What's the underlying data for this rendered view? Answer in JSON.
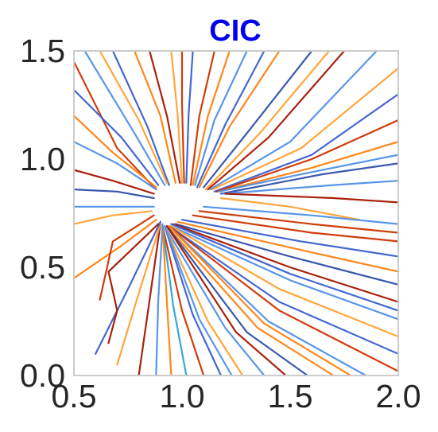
{
  "chart_data": {
    "type": "line",
    "title": "CIC",
    "title_color": "#0000ee",
    "xlim": [
      0.5,
      2.0
    ],
    "ylim": [
      0.0,
      1.5
    ],
    "xticks": [
      0.5,
      1.0,
      1.5,
      2.0
    ],
    "yticks": [
      0.0,
      0.5,
      1.0,
      1.5
    ],
    "xtick_labels": [
      "0.5",
      "1.0",
      "1.5",
      "2.0"
    ],
    "ytick_labels": [
      "0.0",
      "0.5",
      "1.0",
      "1.5"
    ],
    "grid": false,
    "legend": "none",
    "palette": [
      "#3a5fcd",
      "#4f8fe8",
      "#cc3300",
      "#ff7f0e",
      "#ffa030",
      "#a31500",
      "#2f4faa",
      "#29a3d6"
    ],
    "attractor": [
      0.93,
      0.77
    ],
    "series": [
      {
        "color": "#cc3300",
        "points": [
          [
            0.5,
            1.45
          ],
          [
            0.7,
            1.05
          ],
          [
            0.88,
            0.86
          ]
        ]
      },
      {
        "color": "#4f8fe8",
        "points": [
          [
            0.55,
            1.5
          ],
          [
            0.78,
            1.12
          ],
          [
            0.92,
            0.88
          ]
        ]
      },
      {
        "color": "#3a5fcd",
        "points": [
          [
            0.68,
            1.5
          ],
          [
            0.84,
            1.15
          ],
          [
            0.94,
            0.88
          ]
        ]
      },
      {
        "color": "#ff7f0e",
        "points": [
          [
            0.78,
            1.5
          ],
          [
            0.9,
            1.2
          ],
          [
            0.97,
            0.89
          ]
        ]
      },
      {
        "color": "#a31500",
        "points": [
          [
            0.85,
            1.5
          ],
          [
            0.93,
            1.2
          ],
          [
            0.99,
            0.89
          ]
        ]
      },
      {
        "color": "#ffa030",
        "points": [
          [
            0.95,
            1.5
          ],
          [
            0.98,
            1.2
          ],
          [
            1.0,
            0.89
          ]
        ]
      },
      {
        "color": "#3a5fcd",
        "points": [
          [
            1.05,
            1.5
          ],
          [
            1.03,
            1.2
          ],
          [
            1.02,
            0.89
          ]
        ]
      },
      {
        "color": "#cc3300",
        "points": [
          [
            1.15,
            1.5
          ],
          [
            1.08,
            1.2
          ],
          [
            1.04,
            0.88
          ]
        ]
      },
      {
        "color": "#4f8fe8",
        "points": [
          [
            1.3,
            1.5
          ],
          [
            1.15,
            1.18
          ],
          [
            1.06,
            0.88
          ]
        ]
      },
      {
        "color": "#ff7f0e",
        "points": [
          [
            1.45,
            1.5
          ],
          [
            1.22,
            1.15
          ],
          [
            1.08,
            0.87
          ]
        ]
      },
      {
        "color": "#2f4faa",
        "points": [
          [
            1.6,
            1.5
          ],
          [
            1.3,
            1.12
          ],
          [
            1.1,
            0.87
          ]
        ]
      },
      {
        "color": "#a31500",
        "points": [
          [
            1.75,
            1.5
          ],
          [
            1.4,
            1.1
          ],
          [
            1.12,
            0.86
          ]
        ]
      },
      {
        "color": "#4f8fe8",
        "points": [
          [
            1.9,
            1.5
          ],
          [
            1.5,
            1.08
          ],
          [
            1.13,
            0.86
          ]
        ]
      },
      {
        "color": "#ffa030",
        "points": [
          [
            2.0,
            1.42
          ],
          [
            1.55,
            1.05
          ],
          [
            1.14,
            0.86
          ]
        ]
      },
      {
        "color": "#3a5fcd",
        "points": [
          [
            2.0,
            1.3
          ],
          [
            1.6,
            1.02
          ],
          [
            1.15,
            0.85
          ]
        ]
      },
      {
        "color": "#cc3300",
        "points": [
          [
            2.0,
            1.18
          ],
          [
            1.6,
            1.0
          ],
          [
            1.16,
            0.85
          ]
        ]
      },
      {
        "color": "#ff7f0e",
        "points": [
          [
            2.0,
            1.08
          ],
          [
            1.6,
            0.96
          ],
          [
            1.17,
            0.85
          ]
        ]
      },
      {
        "color": "#2f4faa",
        "points": [
          [
            2.0,
            0.98
          ],
          [
            1.65,
            0.93
          ],
          [
            1.18,
            0.84
          ]
        ]
      },
      {
        "color": "#4f8fe8",
        "points": [
          [
            2.0,
            0.9
          ],
          [
            1.7,
            0.88
          ],
          [
            1.19,
            0.84
          ]
        ]
      },
      {
        "color": "#a31500",
        "points": [
          [
            2.0,
            0.8
          ],
          [
            1.7,
            0.82
          ],
          [
            1.2,
            0.84
          ]
        ]
      },
      {
        "color": "#ffa030",
        "points": [
          [
            1.82,
            0.72
          ],
          [
            1.5,
            0.78
          ],
          [
            1.18,
            0.82
          ]
        ]
      },
      {
        "color": "#4f8fe8",
        "points": [
          [
            2.0,
            0.7
          ],
          [
            1.6,
            0.74
          ],
          [
            1.1,
            0.78
          ]
        ]
      },
      {
        "color": "#cc3300",
        "points": [
          [
            2.0,
            0.62
          ],
          [
            1.6,
            0.66
          ],
          [
            1.05,
            0.74
          ]
        ]
      },
      {
        "color": "#3a5fcd",
        "points": [
          [
            2.0,
            0.55
          ],
          [
            1.55,
            0.62
          ],
          [
            1.0,
            0.72
          ]
        ]
      },
      {
        "color": "#ff7f0e",
        "points": [
          [
            2.0,
            0.48
          ],
          [
            1.55,
            0.58
          ],
          [
            0.98,
            0.71
          ]
        ]
      },
      {
        "color": "#2f4faa",
        "points": [
          [
            2.0,
            0.42
          ],
          [
            1.5,
            0.55
          ],
          [
            0.97,
            0.7
          ]
        ]
      },
      {
        "color": "#a31500",
        "points": [
          [
            2.0,
            0.34
          ],
          [
            1.5,
            0.5
          ],
          [
            0.96,
            0.7
          ]
        ]
      },
      {
        "color": "#4f8fe8",
        "points": [
          [
            2.0,
            0.26
          ],
          [
            1.5,
            0.44
          ],
          [
            0.95,
            0.69
          ]
        ]
      },
      {
        "color": "#ffa030",
        "points": [
          [
            2.0,
            0.18
          ],
          [
            1.45,
            0.4
          ],
          [
            0.95,
            0.69
          ]
        ]
      },
      {
        "color": "#3a5fcd",
        "points": [
          [
            2.0,
            0.1
          ],
          [
            1.45,
            0.34
          ],
          [
            0.94,
            0.69
          ]
        ]
      },
      {
        "color": "#cc3300",
        "points": [
          [
            2.0,
            0.02
          ],
          [
            1.45,
            0.3
          ],
          [
            0.94,
            0.69
          ]
        ]
      },
      {
        "color": "#4f8fe8",
        "points": [
          [
            1.85,
            0.0
          ],
          [
            1.4,
            0.25
          ],
          [
            0.94,
            0.69
          ]
        ]
      },
      {
        "color": "#ff7f0e",
        "points": [
          [
            1.7,
            0.0
          ],
          [
            1.35,
            0.22
          ],
          [
            0.93,
            0.69
          ]
        ]
      },
      {
        "color": "#2f4faa",
        "points": [
          [
            1.58,
            0.0
          ],
          [
            1.3,
            0.2
          ],
          [
            0.93,
            0.69
          ]
        ]
      },
      {
        "color": "#a31500",
        "points": [
          [
            1.48,
            0.0
          ],
          [
            1.25,
            0.2
          ],
          [
            0.93,
            0.69
          ]
        ]
      },
      {
        "color": "#4f8fe8",
        "points": [
          [
            1.38,
            0.0
          ],
          [
            1.2,
            0.22
          ],
          [
            0.92,
            0.69
          ]
        ]
      },
      {
        "color": "#ffa030",
        "points": [
          [
            1.28,
            0.0
          ],
          [
            1.12,
            0.25
          ],
          [
            0.92,
            0.69
          ]
        ]
      },
      {
        "color": "#3a5fcd",
        "points": [
          [
            1.18,
            0.0
          ],
          [
            1.05,
            0.28
          ],
          [
            0.92,
            0.69
          ]
        ]
      },
      {
        "color": "#cc3300",
        "points": [
          [
            1.1,
            0.0
          ],
          [
            1.0,
            0.3
          ],
          [
            0.91,
            0.69
          ]
        ]
      },
      {
        "color": "#29a3d6",
        "points": [
          [
            1.02,
            0.0
          ],
          [
            0.96,
            0.32
          ],
          [
            0.91,
            0.69
          ]
        ]
      },
      {
        "color": "#ff7f0e",
        "points": [
          [
            0.95,
            0.0
          ],
          [
            0.93,
            0.34
          ],
          [
            0.91,
            0.69
          ]
        ]
      },
      {
        "color": "#4f8fe8",
        "points": [
          [
            0.88,
            0.0
          ],
          [
            0.89,
            0.35
          ],
          [
            0.91,
            0.7
          ]
        ]
      },
      {
        "color": "#a31500",
        "points": [
          [
            0.8,
            0.0
          ],
          [
            0.85,
            0.35
          ],
          [
            0.9,
            0.7
          ]
        ]
      },
      {
        "color": "#ffa030",
        "points": [
          [
            0.7,
            0.05
          ],
          [
            0.8,
            0.38
          ],
          [
            0.9,
            0.7
          ]
        ]
      },
      {
        "color": "#3a5fcd",
        "points": [
          [
            0.6,
            0.1
          ],
          [
            0.76,
            0.42
          ],
          [
            0.9,
            0.71
          ]
        ]
      },
      {
        "color": "#ff7f0e",
        "points": [
          [
            0.5,
            0.45
          ],
          [
            0.72,
            0.6
          ],
          [
            0.88,
            0.72
          ]
        ]
      },
      {
        "color": "#cc3300",
        "points": [
          [
            0.62,
            0.35
          ],
          [
            0.68,
            0.62
          ],
          [
            0.87,
            0.74
          ]
        ]
      },
      {
        "color": "#4f8fe8",
        "points": [
          [
            0.5,
            0.78
          ],
          [
            0.7,
            0.78
          ],
          [
            0.87,
            0.78
          ]
        ]
      },
      {
        "color": "#ffa030",
        "points": [
          [
            0.5,
            0.7
          ],
          [
            0.68,
            0.74
          ],
          [
            0.86,
            0.76
          ]
        ]
      },
      {
        "color": "#2f4faa",
        "points": [
          [
            0.5,
            0.86
          ],
          [
            0.7,
            0.85
          ],
          [
            0.87,
            0.82
          ]
        ]
      },
      {
        "color": "#a31500",
        "points": [
          [
            0.5,
            0.95
          ],
          [
            0.68,
            0.9
          ],
          [
            0.87,
            0.84
          ]
        ]
      },
      {
        "color": "#4f8fe8",
        "points": [
          [
            0.5,
            1.08
          ],
          [
            0.7,
            0.98
          ],
          [
            0.88,
            0.86
          ]
        ]
      },
      {
        "color": "#ff7f0e",
        "points": [
          [
            0.5,
            1.2
          ],
          [
            0.68,
            1.03
          ],
          [
            0.88,
            0.87
          ]
        ]
      },
      {
        "color": "#3a5fcd",
        "points": [
          [
            0.5,
            1.32
          ],
          [
            0.72,
            1.1
          ],
          [
            0.89,
            0.88
          ]
        ]
      },
      {
        "color": "#ffa030",
        "points": [
          [
            0.62,
            1.5
          ],
          [
            0.8,
            1.18
          ],
          [
            0.93,
            0.89
          ]
        ]
      },
      {
        "color": "#cc3300",
        "points": [
          [
            1.0,
            1.5
          ],
          [
            1.0,
            1.25
          ],
          [
            1.01,
            0.89
          ]
        ]
      },
      {
        "color": "#ff7f0e",
        "points": [
          [
            1.22,
            1.5
          ],
          [
            1.12,
            1.2
          ],
          [
            1.05,
            0.88
          ]
        ]
      },
      {
        "color": "#3a5fcd",
        "points": [
          [
            1.38,
            1.5
          ],
          [
            1.2,
            1.16
          ],
          [
            1.07,
            0.87
          ]
        ]
      },
      {
        "color": "#ffa030",
        "points": [
          [
            1.68,
            1.5
          ],
          [
            1.36,
            1.12
          ],
          [
            1.11,
            0.86
          ]
        ]
      },
      {
        "color": "#4f8fe8",
        "points": [
          [
            2.0,
            1.02
          ],
          [
            1.6,
            0.94
          ],
          [
            1.17,
            0.85
          ]
        ]
      },
      {
        "color": "#cc3300",
        "points": [
          [
            2.0,
            0.66
          ],
          [
            1.6,
            0.7
          ],
          [
            1.08,
            0.76
          ]
        ]
      },
      {
        "color": "#3a5fcd",
        "points": [
          [
            2.0,
            0.3
          ],
          [
            1.5,
            0.47
          ],
          [
            0.95,
            0.7
          ]
        ]
      },
      {
        "color": "#ff7f0e",
        "points": [
          [
            1.78,
            0.0
          ],
          [
            1.38,
            0.24
          ],
          [
            0.94,
            0.69
          ]
        ]
      },
      {
        "color": "#4f8fe8",
        "points": [
          [
            1.23,
            0.0
          ],
          [
            1.08,
            0.26
          ],
          [
            0.92,
            0.69
          ]
        ]
      },
      {
        "color": "#a31500",
        "points": [
          [
            0.66,
            0.15
          ],
          [
            0.7,
            0.3
          ],
          [
            0.66,
            0.48
          ],
          [
            0.89,
            0.7
          ]
        ]
      }
    ]
  }
}
